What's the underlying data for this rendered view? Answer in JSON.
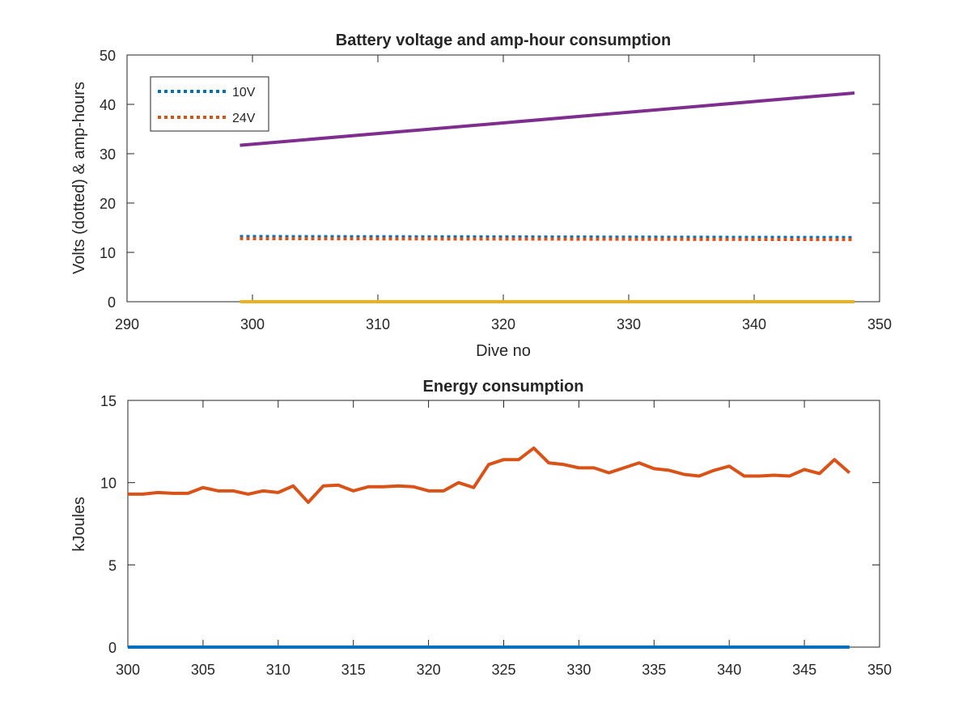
{
  "chart_data": [
    {
      "type": "line",
      "title": "Battery voltage and amp-hour consumption",
      "xlabel": "Dive no",
      "ylabel": "Volts (dotted) & amp-hours",
      "xlim": [
        290,
        350
      ],
      "ylim": [
        0,
        50
      ],
      "xticks": [
        290,
        300,
        310,
        320,
        330,
        340,
        350
      ],
      "yticks": [
        0,
        10,
        20,
        30,
        40,
        50
      ],
      "grid": false,
      "legend_position": "top-left",
      "series": [
        {
          "name": "10V",
          "style": "dotted",
          "color": "#0072BD",
          "x": [
            299,
            348
          ],
          "y": [
            13.2,
            13.0
          ]
        },
        {
          "name": "24V",
          "style": "dotted",
          "color": "#D95319",
          "x": [
            299,
            348
          ],
          "y": [
            12.8,
            12.6
          ]
        },
        {
          "style": "solid",
          "color": "#EDB120",
          "x": [
            299,
            348
          ],
          "y": [
            0,
            0
          ]
        },
        {
          "style": "solid",
          "color": "#7E2F8E",
          "x": [
            299,
            348
          ],
          "y": [
            31.7,
            42.3
          ]
        }
      ]
    },
    {
      "type": "line",
      "title": "Energy consumption",
      "xlabel": "",
      "ylabel": "kJoules",
      "xlim": [
        300,
        350
      ],
      "ylim": [
        0,
        15
      ],
      "xticks": [
        300,
        305,
        310,
        315,
        320,
        325,
        330,
        335,
        340,
        345,
        350
      ],
      "yticks": [
        0,
        5,
        10,
        15
      ],
      "grid": false,
      "series": [
        {
          "style": "solid",
          "color": "#0072BD",
          "x": [
            300,
            348
          ],
          "y": [
            0,
            0
          ]
        },
        {
          "style": "solid",
          "color": "#D95319",
          "x": [
            300,
            301,
            302,
            303,
            304,
            305,
            306,
            307,
            308,
            309,
            310,
            311,
            312,
            313,
            314,
            315,
            316,
            317,
            318,
            319,
            320,
            321,
            322,
            323,
            324,
            325,
            326,
            327,
            328,
            329,
            330,
            331,
            332,
            333,
            334,
            335,
            336,
            337,
            338,
            339,
            340,
            341,
            342,
            343,
            344,
            345,
            346,
            347,
            348
          ],
          "y": [
            9.3,
            9.3,
            9.4,
            9.35,
            9.35,
            9.7,
            9.5,
            9.5,
            9.3,
            9.5,
            9.4,
            9.8,
            8.8,
            9.8,
            9.85,
            9.5,
            9.75,
            9.75,
            9.8,
            9.75,
            9.5,
            9.5,
            10.0,
            9.7,
            11.1,
            11.4,
            11.4,
            12.1,
            11.2,
            11.1,
            10.9,
            10.9,
            10.6,
            10.9,
            11.2,
            10.85,
            10.75,
            10.5,
            10.4,
            10.75,
            11.0,
            10.4,
            10.4,
            10.45,
            10.4,
            10.8,
            10.55,
            11.4,
            10.6
          ]
        }
      ]
    }
  ]
}
